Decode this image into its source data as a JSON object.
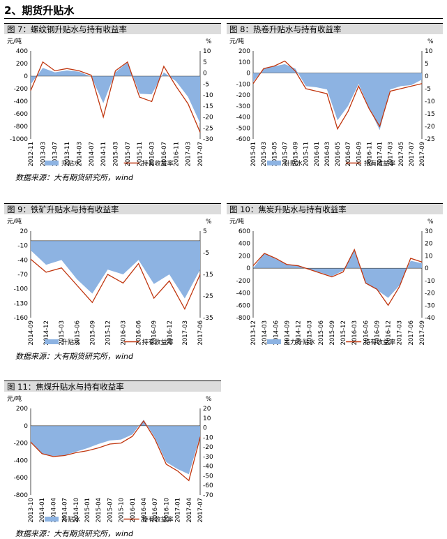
{
  "section_title": "2、期货升贴水",
  "source_text": "数据来源：大有期货研究所，wind",
  "colors": {
    "basis": "#8db3e2",
    "yield": "#c0360f",
    "header_bg": "#dcdcdc"
  },
  "chart_data": [
    {
      "id": "fig7",
      "type": "area",
      "title": "图 7：螺纹钢升贴水与持有收益率",
      "left_unit": "元/吨",
      "right_unit": "%",
      "ylim": [
        -1000,
        400
      ],
      "ylim_right": [
        -30,
        10
      ],
      "yticks": [
        400,
        200,
        0,
        -200,
        -400,
        -600,
        -800,
        -1000
      ],
      "yticks_right": [
        10,
        5,
        0,
        -5,
        -10,
        -15,
        -20,
        -25,
        -30
      ],
      "x": [
        "2012-11",
        "2013-03",
        "2013-07",
        "2013-11",
        "2014-03",
        "2014-07",
        "2014-11",
        "2015-03",
        "2015-07",
        "2015-11",
        "2016-03",
        "2016-07",
        "2016-11",
        "2017-03",
        "2017-07"
      ],
      "series": [
        {
          "name": "升贴水",
          "axis": "left",
          "kind": "area",
          "values": [
            -130,
            130,
            60,
            90,
            70,
            -10,
            -430,
            60,
            220,
            -280,
            -290,
            60,
            -80,
            -330,
            -750
          ]
        },
        {
          "name": "持有收益率",
          "axis": "right",
          "kind": "line",
          "values": [
            -8,
            5,
            1,
            2,
            1,
            -1,
            -20,
            1,
            5,
            -11,
            -13,
            3,
            -6,
            -14,
            -27
          ]
        }
      ]
    },
    {
      "id": "fig8",
      "type": "area",
      "title": "图 8：热卷升贴水与持有收益率",
      "left_unit": "元/吨",
      "right_unit": "%",
      "ylim": [
        -600,
        200
      ],
      "ylim_right": [
        -25,
        10
      ],
      "yticks": [
        200,
        100,
        0,
        -100,
        -200,
        -300,
        -400,
        -500,
        -600
      ],
      "yticks_right": [
        10,
        5,
        0,
        -5,
        -10,
        -15,
        -20,
        -25
      ],
      "x": [
        "2015-01",
        "2015-03",
        "2015-05",
        "2015-07",
        "2015-09",
        "2015-11",
        "2016-01",
        "2016-03",
        "2016-05",
        "2016-07",
        "2016-09",
        "2016-11",
        "2017-01",
        "2017-03",
        "2017-05",
        "2017-07",
        "2017-09"
      ],
      "series": [
        {
          "name": "升贴水",
          "axis": "left",
          "kind": "area",
          "values": [
            -80,
            40,
            60,
            80,
            40,
            -120,
            -130,
            -150,
            -430,
            -300,
            -100,
            -320,
            -520,
            -150,
            -120,
            -110,
            -60
          ]
        },
        {
          "name": "持有收益率",
          "axis": "right",
          "kind": "line",
          "values": [
            -3,
            3,
            4,
            6,
            2,
            -5,
            -6,
            -7,
            -21,
            -14,
            -4,
            -13,
            -20,
            -6,
            -5,
            -4,
            -3
          ]
        }
      ]
    },
    {
      "id": "fig9",
      "type": "area",
      "title": "图 9：铁矿升贴水与持有收益率",
      "left_unit": "元/吨",
      "right_unit": "%",
      "ylim": [
        -160,
        20
      ],
      "ylim_right": [
        -35,
        5
      ],
      "yticks": [
        20,
        -10,
        -40,
        -70,
        -100,
        -130,
        -160
      ],
      "yticks_right": [
        5,
        -5,
        -15,
        -25,
        -35
      ],
      "x": [
        "2014-09",
        "2014-12",
        "2015-03",
        "2015-06",
        "2015-09",
        "2015-12",
        "2016-03",
        "2016-06",
        "2016-09",
        "2016-12",
        "2017-03",
        "2017-06"
      ],
      "series": [
        {
          "name": "升贴水",
          "axis": "left",
          "kind": "area",
          "values": [
            -20,
            -50,
            -40,
            -80,
            -110,
            -60,
            -70,
            -40,
            -90,
            -70,
            -120,
            -60
          ]
        },
        {
          "name": "持有收益率",
          "axis": "right",
          "kind": "line",
          "values": [
            -8,
            -14,
            -12,
            -20,
            -28,
            -15,
            -19,
            -10,
            -26,
            -18,
            -31,
            -15
          ]
        }
      ]
    },
    {
      "id": "fig10",
      "type": "area",
      "title": "图 10：焦炭升贴水与持有收益率",
      "left_unit": "元/吨",
      "right_unit": "%",
      "ylim": [
        -800,
        600
      ],
      "ylim_right": [
        -40,
        30
      ],
      "yticks": [
        600,
        400,
        200,
        0,
        -200,
        -400,
        -600,
        -800
      ],
      "yticks_right": [
        30,
        20,
        10,
        0,
        -10,
        -20,
        -30,
        -40
      ],
      "x": [
        "2013-12",
        "2014-03",
        "2014-06",
        "2014-09",
        "2014-12",
        "2015-03",
        "2015-06",
        "2015-09",
        "2015-12",
        "2016-03",
        "2016-06",
        "2016-09",
        "2016-12",
        "2017-03",
        "2017-06",
        "2017-09"
      ],
      "series": [
        {
          "name": "主力升贴水",
          "axis": "left",
          "kind": "area",
          "values": [
            0,
            240,
            150,
            60,
            50,
            -20,
            -70,
            -130,
            -40,
            310,
            -250,
            -350,
            -480,
            -280,
            120,
            80
          ]
        },
        {
          "name": "持有收益率",
          "axis": "right",
          "kind": "line",
          "values": [
            2,
            12,
            8,
            3,
            2,
            -1,
            -4,
            -7,
            -3,
            15,
            -12,
            -17,
            -30,
            -15,
            8,
            5
          ]
        }
      ]
    },
    {
      "id": "fig11",
      "type": "area",
      "title": "图 11：焦煤升贴水与持有收益率",
      "left_unit": "元/吨",
      "right_unit": "%",
      "ylim": [
        -800,
        200
      ],
      "ylim_right": [
        -70,
        20
      ],
      "yticks": [
        200,
        0,
        -200,
        -400,
        -600,
        -800
      ],
      "yticks_right": [
        20,
        10,
        0,
        -10,
        -20,
        -30,
        -40,
        -50,
        -60,
        -70
      ],
      "x": [
        "2013-10",
        "2014-01",
        "2014-04",
        "2014-07",
        "2014-10",
        "2015-01",
        "2015-04",
        "2015-07",
        "2015-10",
        "2016-01",
        "2016-04",
        "2016-07",
        "2016-10",
        "2017-01",
        "2017-04",
        "2017-07"
      ],
      "series": [
        {
          "name": "升贴水",
          "axis": "left",
          "kind": "area",
          "values": [
            -180,
            -320,
            -350,
            -340,
            -300,
            -260,
            -210,
            -170,
            -160,
            -100,
            70,
            -140,
            -420,
            -500,
            -560,
            -120
          ]
        },
        {
          "name": "持有收益率",
          "axis": "right",
          "kind": "line",
          "values": [
            -15,
            -27,
            -30,
            -29,
            -26,
            -24,
            -21,
            -17,
            -16,
            -9,
            7,
            -12,
            -38,
            -45,
            -55,
            -10
          ]
        }
      ]
    }
  ]
}
